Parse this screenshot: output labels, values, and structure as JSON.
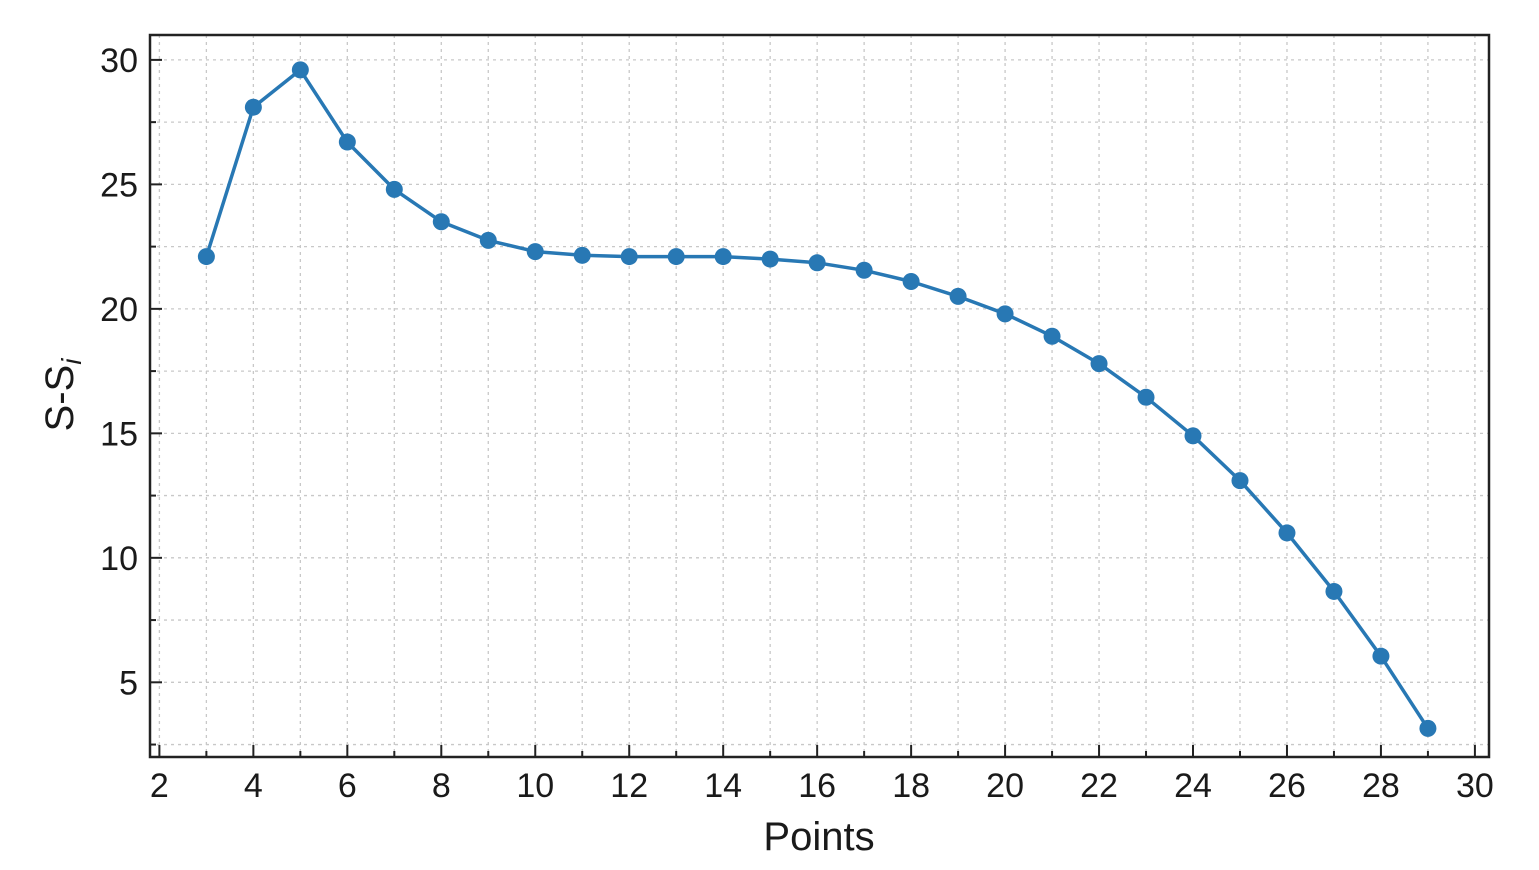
{
  "chart_data": {
    "type": "line",
    "xlabel": "Points",
    "ylabel_base": "S-S",
    "ylabel_sub": "i",
    "xlim": [
      1.8,
      30.3
    ],
    "ylim": [
      2.0,
      31.0
    ],
    "xticks": [
      2,
      4,
      6,
      8,
      10,
      12,
      14,
      16,
      18,
      20,
      22,
      24,
      26,
      28,
      30
    ],
    "yticks": [
      5,
      10,
      15,
      20,
      25,
      30
    ],
    "grid": true,
    "line_color": "#2878b4",
    "series": [
      {
        "x": [
          3,
          4,
          5,
          6,
          7,
          8,
          9,
          10,
          11,
          12,
          13,
          14,
          15,
          16,
          17,
          18,
          19,
          20,
          21,
          22,
          23,
          24,
          25,
          26,
          27,
          28,
          29
        ],
        "y": [
          22.1,
          28.1,
          29.6,
          26.7,
          24.8,
          23.5,
          22.75,
          22.3,
          22.15,
          22.1,
          22.1,
          22.1,
          22.0,
          21.85,
          21.55,
          21.1,
          20.5,
          19.8,
          18.9,
          17.8,
          16.45,
          14.9,
          13.1,
          11.0,
          8.65,
          6.05,
          3.15
        ]
      }
    ]
  }
}
